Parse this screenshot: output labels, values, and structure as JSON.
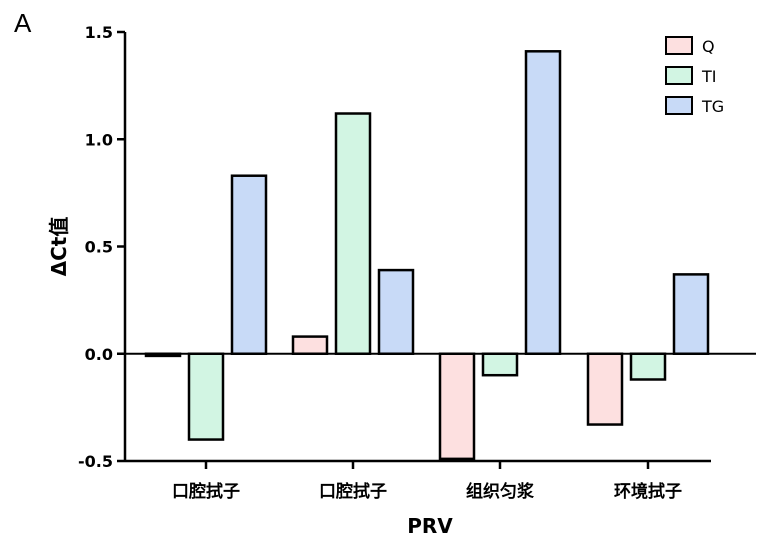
{
  "panel_label": "A",
  "chart_data": {
    "type": "bar",
    "categories": [
      "口腔拭子",
      "口腔拭子",
      "组织匀浆",
      "环境拭子"
    ],
    "series": [
      {
        "name": "Q",
        "color": "#fde0e0",
        "values": [
          -0.01,
          0.08,
          -0.49,
          -0.33
        ]
      },
      {
        "name": "TI",
        "color": "#d2f5e3",
        "values": [
          -0.4,
          1.12,
          -0.1,
          -0.12
        ]
      },
      {
        "name": "TG",
        "color": "#c8daf7",
        "values": [
          0.83,
          0.39,
          1.41,
          0.37
        ]
      }
    ],
    "xlabel": "PRV",
    "ylabel": "ΔCt值",
    "ylim": [
      -0.5,
      1.5
    ],
    "yticks": [
      "-0.5",
      "0.0",
      "0.5",
      "1.0",
      "1.5"
    ],
    "legend_position": "top-right",
    "grid": false
  }
}
